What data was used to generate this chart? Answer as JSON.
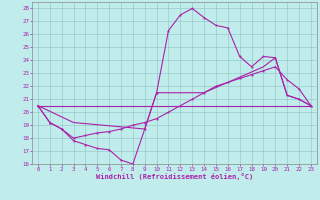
{
  "xlabel": "Windchill (Refroidissement éolien,°C)",
  "xlim": [
    -0.5,
    23.5
  ],
  "ylim": [
    16,
    28.5
  ],
  "yticks": [
    16,
    17,
    18,
    19,
    20,
    21,
    22,
    23,
    24,
    25,
    26,
    27,
    28
  ],
  "xticks": [
    0,
    1,
    2,
    3,
    4,
    5,
    6,
    7,
    8,
    9,
    10,
    11,
    12,
    13,
    14,
    15,
    16,
    17,
    18,
    19,
    20,
    21,
    22,
    23
  ],
  "bg_color": "#c0ecec",
  "line_color": "#aa22aa",
  "grid_color": "#99cccc",
  "line1_x": [
    0,
    1,
    2,
    3,
    4,
    5,
    6,
    7,
    8,
    9,
    10,
    11,
    12,
    13,
    14,
    15,
    16,
    17,
    18,
    19,
    20,
    21,
    22,
    23
  ],
  "line1_y": [
    20.5,
    19.2,
    18.7,
    17.8,
    17.5,
    17.2,
    17.1,
    16.3,
    16.0,
    18.7,
    21.5,
    26.3,
    27.5,
    28.0,
    27.3,
    26.7,
    26.5,
    24.3,
    23.5,
    24.3,
    24.2,
    21.3,
    21.0,
    20.5
  ],
  "line2_x": [
    0,
    1,
    2,
    3,
    4,
    5,
    6,
    7,
    8,
    9,
    10,
    11,
    12,
    13,
    14,
    15,
    16,
    17,
    18,
    19,
    20,
    21,
    22,
    23
  ],
  "line2_y": [
    20.5,
    19.2,
    18.7,
    18.0,
    18.2,
    18.4,
    18.5,
    18.7,
    19.0,
    19.2,
    19.5,
    20.0,
    20.5,
    21.0,
    21.5,
    22.0,
    22.3,
    22.6,
    22.9,
    23.2,
    23.5,
    22.5,
    21.8,
    20.5
  ],
  "line3_x": [
    0,
    23
  ],
  "line3_y": [
    20.5,
    20.5
  ],
  "line4_x": [
    0,
    3,
    9,
    10,
    14,
    19,
    20,
    21,
    22,
    23
  ],
  "line4_y": [
    20.5,
    19.2,
    18.7,
    21.5,
    21.5,
    23.5,
    24.2,
    21.3,
    21.0,
    20.5
  ]
}
